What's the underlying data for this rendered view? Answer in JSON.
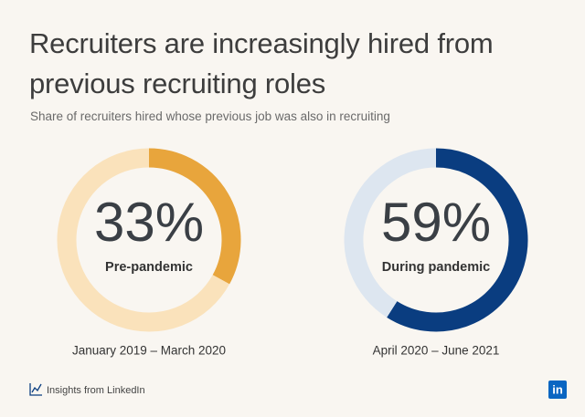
{
  "header": {
    "title": "Recruiters are increasingly hired from previous recruiting roles",
    "subtitle": "Share of recruiters hired whose previous job was also in recruiting"
  },
  "chart_data": [
    {
      "type": "donut",
      "categories": [
        "Pre-pandemic",
        null
      ],
      "values": [
        33,
        67
      ],
      "value_labels": [
        "33%",
        null
      ],
      "colors": [
        "#e8a53c",
        "#fae2bb"
      ],
      "x_label": "January 2019 – March 2020"
    },
    {
      "type": "donut",
      "categories": [
        "During pandemic",
        null
      ],
      "values": [
        59,
        41
      ],
      "value_labels": [
        "59%",
        null
      ],
      "colors": [
        "#0a3d80",
        "#dde6f0"
      ],
      "x_label": "April 2020 – June 2021"
    }
  ],
  "footer": {
    "source": "Insights from LinkedIn",
    "logo": "in"
  }
}
